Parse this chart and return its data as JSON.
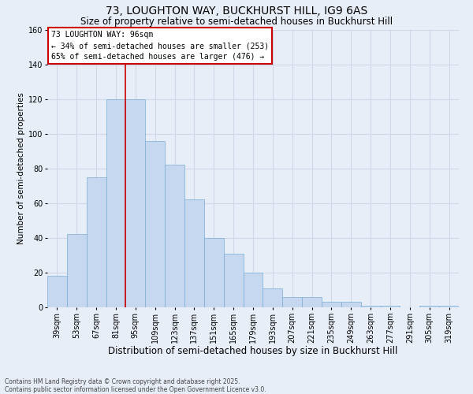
{
  "title": "73, LOUGHTON WAY, BUCKHURST HILL, IG9 6AS",
  "subtitle": "Size of property relative to semi-detached houses in Buckhurst Hill",
  "xlabel": "Distribution of semi-detached houses by size in Buckhurst Hill",
  "ylabel": "Number of semi-detached properties",
  "annotation_line1": "73 LOUGHTON WAY: 96sqm",
  "annotation_line2": "← 34% of semi-detached houses are smaller (253)",
  "annotation_line3": "65% of semi-detached houses are larger (476) →",
  "footer1": "Contains HM Land Registry data © Crown copyright and database right 2025.",
  "footer2": "Contains public sector information licensed under the Open Government Licence v3.0.",
  "categories": [
    "39sqm",
    "53sqm",
    "67sqm",
    "81sqm",
    "95sqm",
    "109sqm",
    "123sqm",
    "137sqm",
    "151sqm",
    "165sqm",
    "179sqm",
    "193sqm",
    "207sqm",
    "221sqm",
    "235sqm",
    "249sqm",
    "263sqm",
    "277sqm",
    "291sqm",
    "305sqm",
    "319sqm"
  ],
  "values": [
    18,
    42,
    75,
    120,
    120,
    96,
    82,
    62,
    40,
    31,
    20,
    11,
    6,
    6,
    3,
    3,
    1,
    1,
    0,
    1,
    1
  ],
  "bar_color": "#c5d8f0",
  "bar_edge_color": "#7aadd4",
  "vline_color": "#cc0000",
  "box_edge_color": "#cc0000",
  "box_face_color": "#ffffff",
  "ylim_max": 160,
  "yticks": [
    0,
    20,
    40,
    60,
    80,
    100,
    120,
    140,
    160
  ],
  "bg_color": "#e8eef8",
  "grid_color": "#d0d8e8",
  "vline_bin_index": 4,
  "title_fontsize": 10,
  "subtitle_fontsize": 8.5,
  "annotation_fontsize": 7,
  "xlabel_fontsize": 8.5,
  "ylabel_fontsize": 7.5,
  "tick_fontsize": 7,
  "footer_fontsize": 5.5
}
